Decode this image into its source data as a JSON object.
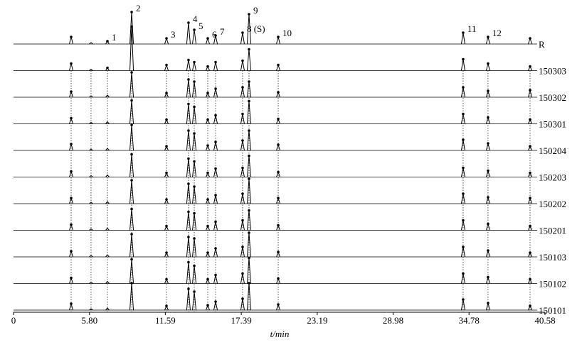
{
  "chart_data": {
    "type": "chromatogram",
    "x_label": "t/min",
    "xlim": [
      0,
      40.58
    ],
    "xticks": [
      0,
      {
        "value": 5.8,
        "label": "5.80"
      },
      11.59,
      17.39,
      23.19,
      28.98,
      34.78,
      40.58
    ],
    "categories": [
      null,
      null,
      "1",
      "2",
      "3",
      "4",
      "5",
      "6",
      "7",
      "8 (S)",
      "9",
      "10",
      "11",
      "12",
      null
    ],
    "x": [
      4.4,
      5.92,
      7.17,
      9.02,
      11.68,
      13.36,
      13.8,
      14.83,
      15.43,
      17.49,
      17.98,
      20.21,
      34.33,
      36.23,
      39.44
    ],
    "series": [
      {
        "name": "R",
        "color": "#000000",
        "values": [
          10,
          2,
          4,
          45,
          8,
          30,
          20,
          8,
          12,
          16,
          42,
          10,
          16,
          10,
          8
        ]
      },
      {
        "name": "150303",
        "color": "#000000",
        "values": [
          10,
          2,
          4,
          62,
          8,
          15,
          12,
          6,
          12,
          14,
          30,
          8,
          16,
          10,
          6
        ]
      },
      {
        "name": "150302",
        "color": "#000000",
        "values": [
          8,
          2,
          3,
          35,
          6,
          25,
          22,
          6,
          12,
          14,
          22,
          7,
          14,
          9,
          10
        ]
      },
      {
        "name": "150301",
        "color": "#000000",
        "values": [
          8,
          2,
          3,
          33,
          6,
          28,
          24,
          6,
          12,
          14,
          32,
          7,
          14,
          9,
          6
        ]
      },
      {
        "name": "150204",
        "color": "#000000",
        "values": [
          9,
          2,
          3,
          36,
          6,
          28,
          24,
          7,
          12,
          14,
          28,
          8,
          15,
          10,
          6
        ]
      },
      {
        "name": "150203",
        "color": "#000000",
        "values": [
          8,
          2,
          3,
          32,
          6,
          26,
          22,
          6,
          12,
          13,
          30,
          7,
          13,
          9,
          6
        ]
      },
      {
        "name": "150202",
        "color": "#000000",
        "values": [
          8,
          2,
          3,
          33,
          6,
          28,
          24,
          6,
          12,
          14,
          35,
          8,
          14,
          9,
          8
        ]
      },
      {
        "name": "150201",
        "color": "#000000",
        "values": [
          8,
          2,
          3,
          30,
          6,
          26,
          24,
          6,
          12,
          14,
          28,
          7,
          14,
          9,
          6
        ]
      },
      {
        "name": "150103",
        "color": "#000000",
        "values": [
          8,
          2,
          3,
          32,
          6,
          28,
          26,
          6,
          12,
          14,
          34,
          7,
          14,
          9,
          6
        ]
      },
      {
        "name": "150102",
        "color": "#000000",
        "values": [
          8,
          2,
          3,
          34,
          6,
          30,
          25,
          6,
          12,
          14,
          36,
          7,
          14,
          9,
          6
        ]
      },
      {
        "name": "150101",
        "color": "#000000",
        "values": [
          9,
          2,
          3,
          38,
          6,
          30,
          26,
          7,
          12,
          16,
          38,
          8,
          15,
          10,
          6
        ]
      }
    ]
  }
}
